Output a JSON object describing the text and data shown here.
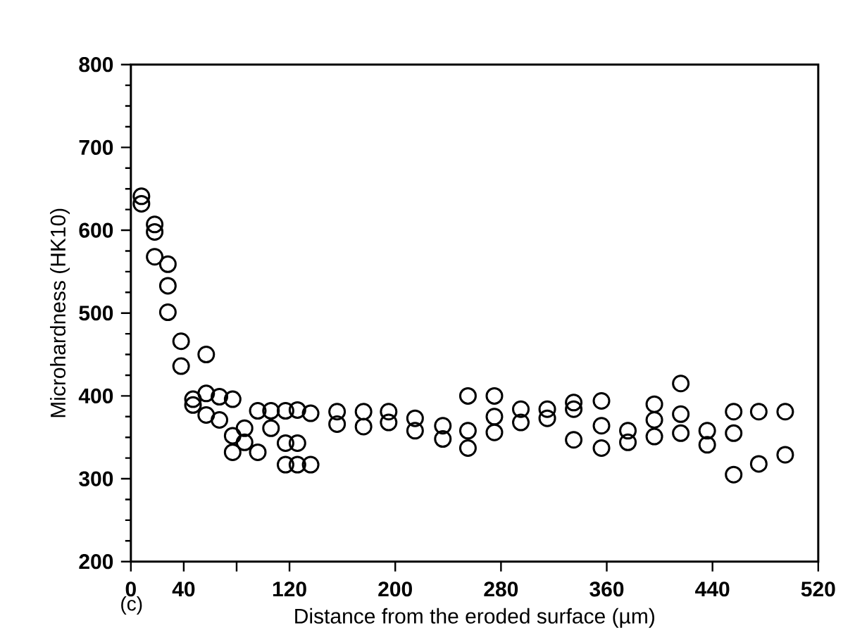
{
  "chart_data": {
    "type": "scatter",
    "xlabel": "Distance from the eroded surface (µm)",
    "ylabel": "Microhardness (HK10)",
    "annotations": [
      "(c)"
    ],
    "x": [
      8,
      8,
      18,
      18,
      18,
      28,
      28,
      28,
      38,
      38,
      57,
      47,
      47,
      57,
      67,
      77,
      57,
      67,
      77,
      77,
      86,
      86,
      96,
      96,
      106,
      106,
      117,
      117,
      117,
      126,
      126,
      126,
      136,
      136,
      156,
      156,
      176,
      176,
      195,
      195,
      215,
      215,
      236,
      236,
      255,
      255,
      255,
      275,
      275,
      275,
      295,
      295,
      315,
      315,
      335,
      335,
      335,
      356,
      356,
      356,
      376,
      376,
      396,
      396,
      396,
      416,
      416,
      416,
      436,
      436,
      456,
      456,
      456,
      475,
      475,
      495,
      495
    ],
    "values": [
      641,
      632,
      607,
      598,
      568,
      559,
      533,
      501,
      466,
      436,
      450,
      396,
      389,
      403,
      399,
      396,
      377,
      371,
      352,
      332,
      361,
      344,
      332,
      382,
      382,
      361,
      382,
      343,
      317,
      383,
      343,
      317,
      379,
      317,
      381,
      366,
      381,
      363,
      381,
      368,
      373,
      358,
      364,
      348,
      400,
      358,
      337,
      400,
      375,
      356,
      384,
      368,
      384,
      373,
      392,
      384,
      347,
      394,
      364,
      337,
      358,
      344,
      390,
      371,
      351,
      415,
      378,
      355,
      358,
      341,
      381,
      355,
      305,
      381,
      318,
      381,
      329
    ],
    "color": "#000000",
    "marker": "circle",
    "xlim": [
      0,
      520
    ],
    "ylim": [
      200,
      800
    ],
    "xticks": [
      0,
      40,
      {
        "value": 80,
        "label": null
      },
      120,
      200,
      280,
      360,
      440,
      520
    ],
    "yticks": [
      200,
      300,
      400,
      500,
      600,
      700,
      800
    ]
  }
}
